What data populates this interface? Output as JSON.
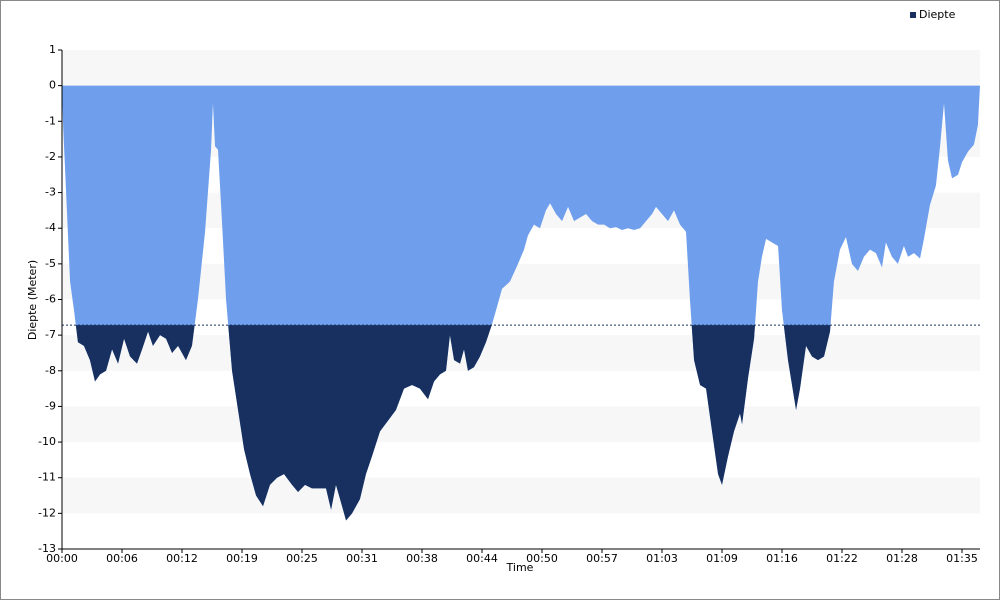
{
  "chart_data": {
    "type": "area",
    "x_label": "Time",
    "y_label": "Diepte (Meter)",
    "legend": "top-right",
    "grid": true,
    "xlim": [
      0,
      5814
    ],
    "ylim": [
      -13,
      1
    ],
    "yticks": [
      1,
      0,
      -1,
      -2,
      -3,
      -4,
      -5,
      -6,
      -7,
      -8,
      -9,
      -10,
      -11,
      -12,
      -13
    ],
    "xticks": [
      {
        "value": 0,
        "label": "00:00"
      },
      {
        "value": 380,
        "label": "00:06"
      },
      {
        "value": 760,
        "label": "00:12"
      },
      {
        "value": 1140,
        "label": "00:19"
      },
      {
        "value": 1520,
        "label": "00:25"
      },
      {
        "value": 1900,
        "label": "00:31"
      },
      {
        "value": 2280,
        "label": "00:38"
      },
      {
        "value": 2660,
        "label": "00:44"
      },
      {
        "value": 3040,
        "label": "00:50"
      },
      {
        "value": 3420,
        "label": "00:57"
      },
      {
        "value": 3800,
        "label": "01:03"
      },
      {
        "value": 4180,
        "label": "01:09"
      },
      {
        "value": 4560,
        "label": "01:16"
      },
      {
        "value": 4940,
        "label": "01:22"
      },
      {
        "value": 5320,
        "label": "01:28"
      },
      {
        "value": 5700,
        "label": "01:35"
      }
    ],
    "threshold": -6.72,
    "x": [
      0,
      6,
      25,
      51,
      76,
      101,
      139,
      177,
      209,
      241,
      279,
      317,
      355,
      393,
      431,
      475,
      507,
      545,
      576,
      621,
      659,
      697,
      735,
      785,
      823,
      861,
      906,
      944,
      956,
      969,
      988,
      1013,
      1039,
      1077,
      1115,
      1153,
      1191,
      1229,
      1273,
      1317,
      1362,
      1406,
      1457,
      1495,
      1539,
      1583,
      1634,
      1672,
      1704,
      1735,
      1761,
      1799,
      1837,
      1887,
      1925,
      1963,
      2014,
      2065,
      2115,
      2166,
      2217,
      2267,
      2318,
      2356,
      2394,
      2432,
      2457,
      2483,
      2521,
      2546,
      2571,
      2609,
      2647,
      2685,
      2723,
      2749,
      2787,
      2837,
      2888,
      2926,
      2951,
      2989,
      3027,
      3065,
      3091,
      3129,
      3167,
      3205,
      3243,
      3281,
      3319,
      3357,
      3395,
      3433,
      3471,
      3509,
      3547,
      3585,
      3623,
      3661,
      3699,
      3737,
      3762,
      3800,
      3838,
      3876,
      3914,
      3952,
      3977,
      4003,
      4041,
      4079,
      4117,
      4155,
      4180,
      4218,
      4256,
      4294,
      4307,
      4345,
      4383,
      4408,
      4433,
      4459,
      4497,
      4535,
      4560,
      4598,
      4649,
      4674,
      4712,
      4750,
      4788,
      4826,
      4864,
      4889,
      4927,
      4965,
      5003,
      5041,
      5079,
      5117,
      5155,
      5193,
      5218,
      5256,
      5294,
      5332,
      5358,
      5396,
      5434,
      5459,
      5497,
      5535,
      5560,
      5586,
      5611,
      5637,
      5675,
      5700,
      5738,
      5776,
      5801,
      5814
    ],
    "series": [
      {
        "name": "Diepte",
        "color": "#17305f",
        "upper_color": "#6f9fec",
        "values": [
          0,
          -1.0,
          -2.9,
          -5.5,
          -6.3,
          -7.2,
          -7.3,
          -7.7,
          -8.3,
          -8.1,
          -8.0,
          -7.4,
          -7.8,
          -7.1,
          -7.6,
          -7.8,
          -7.4,
          -6.9,
          -7.3,
          -7.0,
          -7.1,
          -7.5,
          -7.3,
          -7.7,
          -7.3,
          -6.0,
          -4.1,
          -1.8,
          -0.5,
          -1.7,
          -1.8,
          -3.8,
          -6.0,
          -8.0,
          -9.1,
          -10.2,
          -10.9,
          -11.5,
          -11.8,
          -11.2,
          -11.0,
          -10.9,
          -11.2,
          -11.4,
          -11.2,
          -11.3,
          -11.3,
          -11.3,
          -11.9,
          -11.2,
          -11.6,
          -12.2,
          -12.0,
          -11.6,
          -10.9,
          -10.4,
          -9.7,
          -9.4,
          -9.1,
          -8.5,
          -8.4,
          -8.5,
          -8.8,
          -8.3,
          -8.1,
          -8.0,
          -7.0,
          -7.7,
          -7.8,
          -7.4,
          -8.0,
          -7.9,
          -7.6,
          -7.2,
          -6.7,
          -6.3,
          -5.7,
          -5.5,
          -5.0,
          -4.6,
          -4.2,
          -3.9,
          -4.0,
          -3.5,
          -3.3,
          -3.6,
          -3.8,
          -3.4,
          -3.8,
          -3.7,
          -3.6,
          -3.8,
          -3.9,
          -3.9,
          -4.0,
          -3.97,
          -4.05,
          -4.0,
          -4.05,
          -4.0,
          -3.8,
          -3.6,
          -3.4,
          -3.6,
          -3.8,
          -3.5,
          -3.9,
          -4.1,
          -6.0,
          -7.7,
          -8.4,
          -8.5,
          -9.7,
          -10.9,
          -11.2,
          -10.4,
          -9.7,
          -9.2,
          -9.5,
          -8.2,
          -7.1,
          -5.5,
          -4.8,
          -4.3,
          -4.4,
          -4.5,
          -6.3,
          -7.7,
          -9.1,
          -8.5,
          -7.3,
          -7.6,
          -7.7,
          -7.6,
          -6.9,
          -5.5,
          -4.6,
          -4.25,
          -5.0,
          -5.2,
          -4.8,
          -4.6,
          -4.7,
          -5.1,
          -4.4,
          -4.8,
          -5.0,
          -4.5,
          -4.8,
          -4.7,
          -4.85,
          -4.3,
          -3.35,
          -2.8,
          -1.75,
          -0.5,
          -2.1,
          -2.6,
          -2.5,
          -2.15,
          -1.85,
          -1.65,
          -1.1,
          0
        ]
      }
    ]
  }
}
